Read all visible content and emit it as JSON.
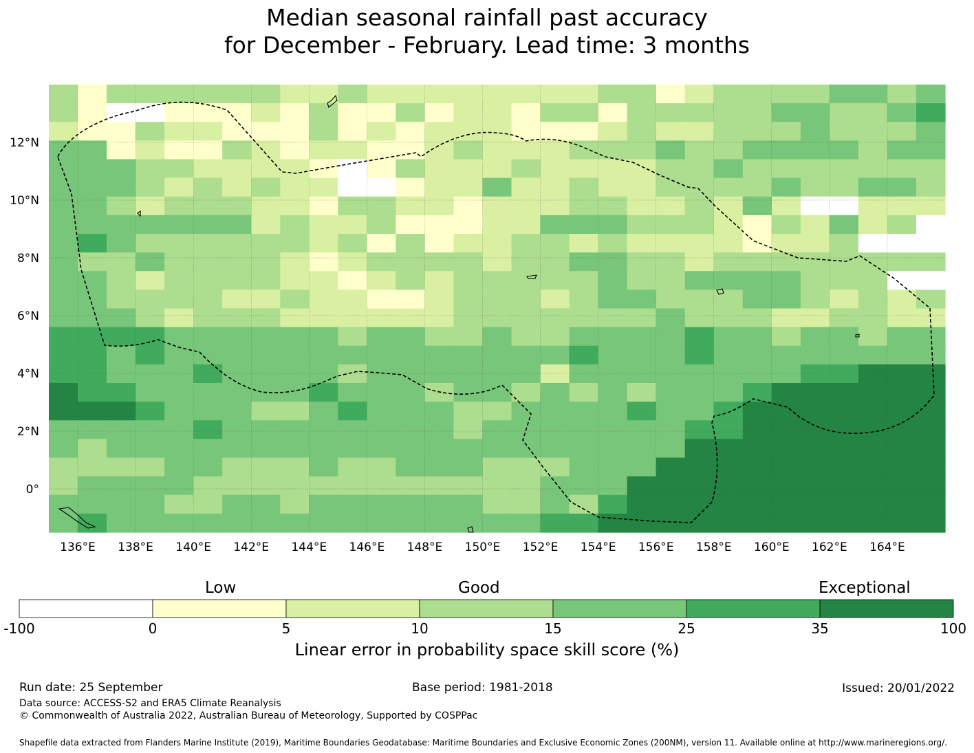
{
  "title": {
    "line1": "Median seasonal rainfall past accuracy",
    "line2": "for December - February. Lead time: 3 months"
  },
  "map": {
    "lon_range": [
      135,
      166
    ],
    "lat_range": [
      -1.5,
      14
    ],
    "lon_ticks": [
      "136°E",
      "138°E",
      "140°E",
      "142°E",
      "144°E",
      "146°E",
      "148°E",
      "150°E",
      "152°E",
      "154°E",
      "156°E",
      "158°E",
      "160°E",
      "162°E",
      "164°E"
    ],
    "lat_ticks": [
      "0°",
      "2°N",
      "4°N",
      "6°N",
      "8°N",
      "10°N",
      "12°N"
    ],
    "category_colors": [
      "#ffffff",
      "#ffffcc",
      "#d9f0a3",
      "#addd8e",
      "#78c679",
      "#41ab5d",
      "#238443"
    ],
    "grid_rows": [
      "3133333322322222222331233334434",
      "3100111213113122133133333443345",
      "2113221113121222111232233343334",
      "4412113212211232223334334444344",
      "4443322221013222322223343333333",
      "4443232322001224223223333433443",
      "4432333221332212223322324200222",
      "4444444232231112244433321324230",
      "4543333332313122332322221223000",
      "4334333321233332334433233333333",
      "4432333322123233333433444433300",
      "4433332232211233323443334432323",
      "4443233322222233333334333223322",
      "5555444444344334334444544344344",
      "5545444444444444445444544444444",
      "5544454444344444424444444455666",
      "6554444445444344343434445666666",
      "6665444334544433444454456666666",
      "4444454444444434444444556666666",
      "4344444444444444444444666666666",
      "3333443334334443334446666666666",
      "3444433333333333344466666666666",
      "4444334434444443343566666666666",
      "4544444444444444455666666666666"
    ]
  },
  "colorbar": {
    "groups": [
      "Low",
      "Good",
      "Exceptional"
    ],
    "tick_labels": [
      "-100",
      "0",
      "5",
      "10",
      "15",
      "25",
      "35",
      "100"
    ],
    "title": "Linear error in probability space skill score (%)"
  },
  "footer": {
    "run_date": "Run date: 25 September",
    "base_period": "Base period: 1981-2018",
    "issued": "Issued: 20/01/2022",
    "data_source": "Data source: ACCESS-S2 and ERA5 Climate Reanalysis",
    "copyright": "© Commonwealth of Australia 2022, Australian Bureau of Meteorology, Supported by COSPPac",
    "shapefile": "Shapefile data extracted from Flanders Marine Institute (2019), Maritime Boundaries Geodatabase: Maritime Boundaries and Exclusive Economic Zones (200NM), version 11. Available online at http://www.marineregions.org/."
  }
}
